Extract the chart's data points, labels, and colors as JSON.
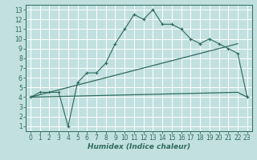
{
  "line1_x": [
    0,
    1,
    2,
    3,
    4,
    5,
    6,
    7,
    8,
    9,
    10,
    11,
    12,
    13,
    14,
    15,
    16,
    17,
    18,
    19,
    20,
    21,
    22,
    23
  ],
  "line1_y": [
    4.0,
    4.5,
    4.5,
    4.5,
    1.0,
    5.5,
    6.5,
    6.5,
    7.5,
    9.5,
    11.0,
    12.5,
    12.0,
    13.0,
    11.5,
    11.5,
    11.0,
    10.0,
    9.5,
    10.0,
    9.5,
    9.0,
    8.5,
    4.0
  ],
  "line2_x": [
    0,
    22
  ],
  "line2_y": [
    4.0,
    9.5
  ],
  "line3_x": [
    0,
    22,
    23
  ],
  "line3_y": [
    4.0,
    4.5,
    4.0
  ],
  "line_color": "#2e6b5e",
  "bg_color": "#c2e0e0",
  "grid_color": "#ffffff",
  "xlabel": "Humidex (Indice chaleur)",
  "xlim": [
    -0.5,
    23.5
  ],
  "ylim": [
    0.5,
    13.5
  ],
  "xticks": [
    0,
    1,
    2,
    3,
    4,
    5,
    6,
    7,
    8,
    9,
    10,
    11,
    12,
    13,
    14,
    15,
    16,
    17,
    18,
    19,
    20,
    21,
    22,
    23
  ],
  "yticks": [
    1,
    2,
    3,
    4,
    5,
    6,
    7,
    8,
    9,
    10,
    11,
    12,
    13
  ],
  "xlabel_fontsize": 6.5,
  "tick_fontsize": 5.5
}
